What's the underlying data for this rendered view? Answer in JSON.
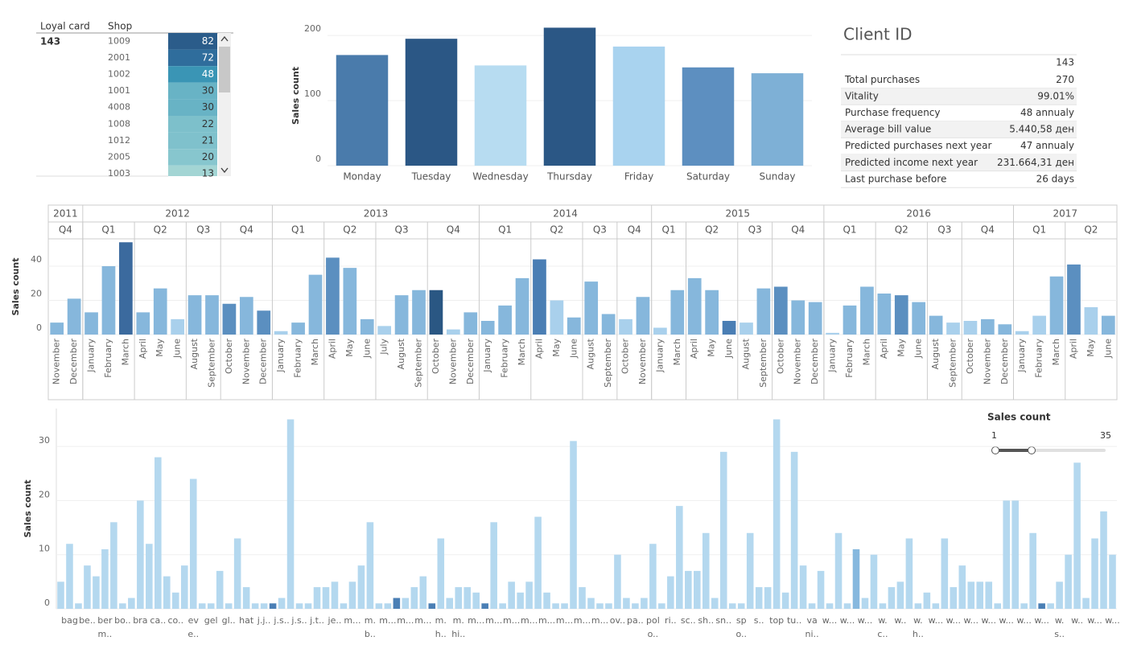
{
  "shop_table": {
    "headers": [
      "Loyal card",
      "Shop"
    ],
    "card": "143",
    "shops": [
      "1009",
      "2001",
      "1002",
      "1001",
      "4008",
      "1008",
      "1012",
      "2005",
      "1003"
    ],
    "values": [
      82,
      72,
      48,
      30,
      30,
      22,
      21,
      20,
      13
    ],
    "colors": [
      "#2b5c8a",
      "#2f6d9c",
      "#3a95b5",
      "#68b3c5",
      "#68b3c5",
      "#7dc0cb",
      "#7fc1cc",
      "#87c6ce",
      "#a3d5d4"
    ]
  },
  "client_card": {
    "title": "Client ID",
    "client": "143",
    "rows": [
      {
        "label": "Total purchases",
        "value": "270"
      },
      {
        "label": "Vitality",
        "value": "99.01%"
      },
      {
        "label": "Purchase frequency",
        "value": "48 annualy"
      },
      {
        "label": "Average bill value",
        "value": "5.440,58 ден"
      },
      {
        "label": "Predicted purchases next year",
        "value": "47 annualy"
      },
      {
        "label": "Predicted income next year",
        "value": "231.664,31 ден"
      },
      {
        "label": "Last purchase before",
        "value": "26 days"
      }
    ]
  },
  "filter": {
    "title": "Sales count",
    "min": 1,
    "max": 35
  },
  "chart_data": [
    {
      "type": "bar",
      "y_label": "Sales count",
      "categories": [
        "Monday",
        "Tuesday",
        "Wednesday",
        "Thursday",
        "Friday",
        "Saturday",
        "Sunday"
      ],
      "values": [
        170,
        195,
        154,
        212,
        183,
        151,
        142
      ],
      "colors": [
        "#4a7bab",
        "#2b5785",
        "#b7dcf1",
        "#2b5785",
        "#a9d3ef",
        "#5d8fc0",
        "#7eb0d6"
      ],
      "ylim": [
        0,
        215
      ],
      "yticks": [
        0,
        100,
        200
      ],
      "grid": true
    },
    {
      "type": "bar",
      "y_label": "Sales count",
      "years": [
        "2011",
        "2011",
        "2012",
        "2012",
        "2012",
        "2012",
        "2012",
        "2012",
        "2012",
        "2012",
        "2012",
        "2012",
        "2012",
        "2013",
        "2013",
        "2013",
        "2013",
        "2013",
        "2013",
        "2013",
        "2013",
        "2013",
        "2013",
        "2013",
        "2013",
        "2014",
        "2014",
        "2014",
        "2014",
        "2014",
        "2014",
        "2014",
        "2014",
        "2014",
        "2014",
        "2015",
        "2015",
        "2015",
        "2015",
        "2015",
        "2015",
        "2015",
        "2015",
        "2015",
        "2015",
        "2016",
        "2016",
        "2016",
        "2016",
        "2016",
        "2016",
        "2016",
        "2016",
        "2016",
        "2016",
        "2016",
        "2017",
        "2017",
        "2017",
        "2017",
        "2017",
        "2017"
      ],
      "quarters": [
        "Q4",
        "Q4",
        "Q1",
        "Q1",
        "Q1",
        "Q2",
        "Q2",
        "Q2",
        "Q3",
        "Q3",
        "Q4",
        "Q4",
        "Q4",
        "Q1",
        "Q1",
        "Q1",
        "Q2",
        "Q2",
        "Q2",
        "Q3",
        "Q3",
        "Q3",
        "Q4",
        "Q4",
        "Q4",
        "Q1",
        "Q1",
        "Q1",
        "Q2",
        "Q2",
        "Q2",
        "Q3",
        "Q3",
        "Q4",
        "Q4",
        "Q1",
        "Q1",
        "Q2",
        "Q2",
        "Q2",
        "Q3",
        "Q3",
        "Q4",
        "Q4",
        "Q4",
        "Q1",
        "Q1",
        "Q1",
        "Q2",
        "Q2",
        "Q2",
        "Q3",
        "Q3",
        "Q4",
        "Q4",
        "Q4",
        "Q1",
        "Q1",
        "Q1",
        "Q2",
        "Q2",
        "Q2"
      ],
      "categories": [
        "November",
        "December",
        "January",
        "February",
        "March",
        "April",
        "May",
        "June",
        "August",
        "September",
        "October",
        "November",
        "December",
        "January",
        "February",
        "March",
        "April",
        "May",
        "June",
        "July",
        "August",
        "September",
        "October",
        "November",
        "December",
        "January",
        "February",
        "March",
        "April",
        "May",
        "June",
        "August",
        "September",
        "October",
        "November",
        "January",
        "March",
        "April",
        "May",
        "June",
        "August",
        "September",
        "October",
        "November",
        "December",
        "January",
        "February",
        "March",
        "April",
        "May",
        "June",
        "August",
        "September",
        "October",
        "November",
        "December",
        "January",
        "February",
        "March",
        "April",
        "May",
        "June"
      ],
      "values": [
        7,
        21,
        13,
        40,
        54,
        13,
        27,
        9,
        23,
        23,
        18,
        22,
        14,
        2,
        7,
        35,
        45,
        39,
        9,
        5,
        23,
        26,
        26,
        3,
        13,
        8,
        17,
        33,
        44,
        20,
        10,
        31,
        12,
        9,
        22,
        4,
        26,
        33,
        26,
        8,
        7,
        27,
        28,
        20,
        19,
        1,
        17,
        28,
        24,
        23,
        19,
        11,
        7,
        8,
        9,
        6,
        2,
        11,
        34,
        41,
        16,
        11
      ],
      "colors": [
        "#86b7dc",
        "#86b7dc",
        "#86b7dc",
        "#86b7dc",
        "#3b6a9e",
        "#86b7dc",
        "#86b7dc",
        "#a9d0ec",
        "#86b7dc",
        "#86b7dc",
        "#5b8fc0",
        "#86b7dc",
        "#5b8fc0",
        "#a9d0ec",
        "#86b7dc",
        "#86b7dc",
        "#5b8fc0",
        "#86b7dc",
        "#86b7dc",
        "#a9d0ec",
        "#86b7dc",
        "#86b7dc",
        "#2a5783",
        "#a9d0ec",
        "#86b7dc",
        "#86b7dc",
        "#86b7dc",
        "#86b7dc",
        "#4a7eb4",
        "#a9d0ec",
        "#86b7dc",
        "#86b7dc",
        "#86b7dc",
        "#a9d0ec",
        "#86b7dc",
        "#a9d0ec",
        "#86b7dc",
        "#86b7dc",
        "#86b7dc",
        "#4a7eb4",
        "#a9d0ec",
        "#86b7dc",
        "#5b8fc0",
        "#86b7dc",
        "#86b7dc",
        "#a9d0ec",
        "#86b7dc",
        "#86b7dc",
        "#86b7dc",
        "#5b8fc0",
        "#86b7dc",
        "#86b7dc",
        "#a9d0ec",
        "#a9d0ec",
        "#86b7dc",
        "#86b7dc",
        "#a9d0ec",
        "#a9d0ec",
        "#86b7dc",
        "#5b8fc0",
        "#a9d0ec",
        "#86b7dc"
      ],
      "ylim": [
        0,
        56
      ],
      "yticks": [
        0,
        20,
        40
      ],
      "grid": true
    },
    {
      "type": "bar",
      "y_label": "Sales count",
      "categories": [
        null,
        "bag",
        null,
        "be..",
        null,
        "ber m..",
        null,
        "bo..",
        null,
        "bra",
        null,
        "ca..",
        null,
        "co..",
        null,
        "ev e..",
        null,
        "gel",
        null,
        "gl..",
        null,
        "hat",
        null,
        "j.j..",
        null,
        "j.s..",
        null,
        "j.s..",
        null,
        "j.t..",
        null,
        "je..",
        null,
        "m...",
        null,
        "m. b..",
        null,
        "m...",
        null,
        "m...",
        null,
        "m...",
        null,
        "m. h..",
        null,
        "m. hi..",
        null,
        "m...",
        null,
        "m...",
        null,
        "m...",
        null,
        "m...",
        null,
        "m...",
        null,
        "m...",
        null,
        "m...",
        null,
        "m...",
        null,
        "ov..",
        null,
        "pa..",
        null,
        "pol o..",
        null,
        "ri..",
        null,
        "sc..",
        null,
        "sh..",
        null,
        "sn..",
        null,
        "sp o..",
        null,
        "s..",
        null,
        "top",
        null,
        "tu..",
        null,
        "va ni..",
        null,
        "w...",
        null,
        "w...",
        null,
        "w...",
        null,
        "w. c..",
        null,
        "w..",
        null,
        "w. h..",
        null,
        "w...",
        null,
        "w...",
        null,
        "w...",
        null,
        "w...",
        null,
        "w...",
        null,
        "w...",
        null,
        "w...",
        null,
        "w. s..",
        null,
        "w..",
        null,
        "w...",
        null,
        "w..."
      ],
      "values": [
        5,
        12,
        1,
        8,
        6,
        11,
        16,
        1,
        2,
        20,
        12,
        28,
        6,
        3,
        8,
        24,
        1,
        1,
        7,
        1,
        13,
        4,
        1,
        1,
        1,
        2,
        35,
        1,
        1,
        4,
        4,
        5,
        1,
        5,
        8,
        16,
        1,
        1,
        2,
        2,
        4,
        6,
        1,
        13,
        2,
        4,
        4,
        3,
        1,
        16,
        1,
        5,
        3,
        5,
        17,
        3,
        1,
        1,
        31,
        4,
        2,
        1,
        1,
        10,
        2,
        1,
        2,
        12,
        1,
        6,
        19,
        7,
        7,
        14,
        2,
        29,
        1,
        1,
        14,
        4,
        4,
        35,
        3,
        29,
        8,
        1,
        7,
        1,
        14,
        1,
        11,
        2,
        10,
        1,
        4,
        5,
        13,
        1,
        3,
        1,
        13,
        4,
        8,
        5,
        5,
        5,
        1,
        20,
        20,
        1,
        14,
        1,
        1,
        5,
        10,
        27,
        2,
        13,
        18,
        10
      ],
      "colors": [
        "#b4d8ef",
        "#b4d8ef",
        "#b4d8ef",
        "#b4d8ef",
        "#b4d8ef",
        "#b4d8ef",
        "#b4d8ef",
        "#b4d8ef",
        "#b4d8ef",
        "#b4d8ef",
        "#b4d8ef",
        "#b4d8ef",
        "#b4d8ef",
        "#b4d8ef",
        "#b4d8ef",
        "#b4d8ef",
        "#b4d8ef",
        "#b4d8ef",
        "#b4d8ef",
        "#b4d8ef",
        "#b4d8ef",
        "#b4d8ef",
        "#b4d8ef",
        "#b4d8ef",
        "#4a7fb5",
        "#b4d8ef",
        "#b4d8ef",
        "#b4d8ef",
        "#b4d8ef",
        "#b4d8ef",
        "#b4d8ef",
        "#b4d8ef",
        "#b4d8ef",
        "#b4d8ef",
        "#b4d8ef",
        "#b4d8ef",
        "#b4d8ef",
        "#b4d8ef",
        "#4a7fb5",
        "#b4d8ef",
        "#b4d8ef",
        "#b4d8ef",
        "#4a7fb5",
        "#b4d8ef",
        "#b4d8ef",
        "#b4d8ef",
        "#b4d8ef",
        "#b4d8ef",
        "#4a7fb5",
        "#b4d8ef",
        "#b4d8ef",
        "#b4d8ef",
        "#b4d8ef",
        "#b4d8ef",
        "#b4d8ef",
        "#b4d8ef",
        "#b4d8ef",
        "#b4d8ef",
        "#b4d8ef",
        "#b4d8ef",
        "#b4d8ef",
        "#b4d8ef",
        "#b4d8ef",
        "#b4d8ef",
        "#b4d8ef",
        "#b4d8ef",
        "#b4d8ef",
        "#b4d8ef",
        "#b4d8ef",
        "#b4d8ef",
        "#b4d8ef",
        "#b4d8ef",
        "#b4d8ef",
        "#b4d8ef",
        "#b4d8ef",
        "#b4d8ef",
        "#b4d8ef",
        "#b4d8ef",
        "#b4d8ef",
        "#b4d8ef",
        "#b4d8ef",
        "#b4d8ef",
        "#b4d8ef",
        "#b4d8ef",
        "#b4d8ef",
        "#b4d8ef",
        "#b4d8ef",
        "#b4d8ef",
        "#b4d8ef",
        "#b4d8ef",
        "#86b8de",
        "#b4d8ef",
        "#b4d8ef",
        "#b4d8ef",
        "#b4d8ef",
        "#b4d8ef",
        "#b4d8ef",
        "#b4d8ef",
        "#b4d8ef",
        "#b4d8ef",
        "#b4d8ef",
        "#b4d8ef",
        "#b4d8ef",
        "#b4d8ef",
        "#b4d8ef",
        "#b4d8ef",
        "#b4d8ef",
        "#b4d8ef",
        "#b4d8ef",
        "#b4d8ef",
        "#b4d8ef",
        "#4a7fb5",
        "#b4d8ef",
        "#b4d8ef",
        "#b4d8ef",
        "#b4d8ef",
        "#b4d8ef",
        "#b4d8ef",
        "#b4d8ef",
        "#b4d8ef"
      ],
      "ylim": [
        0,
        37
      ],
      "yticks": [
        0,
        10,
        20,
        30
      ],
      "grid": true
    }
  ]
}
